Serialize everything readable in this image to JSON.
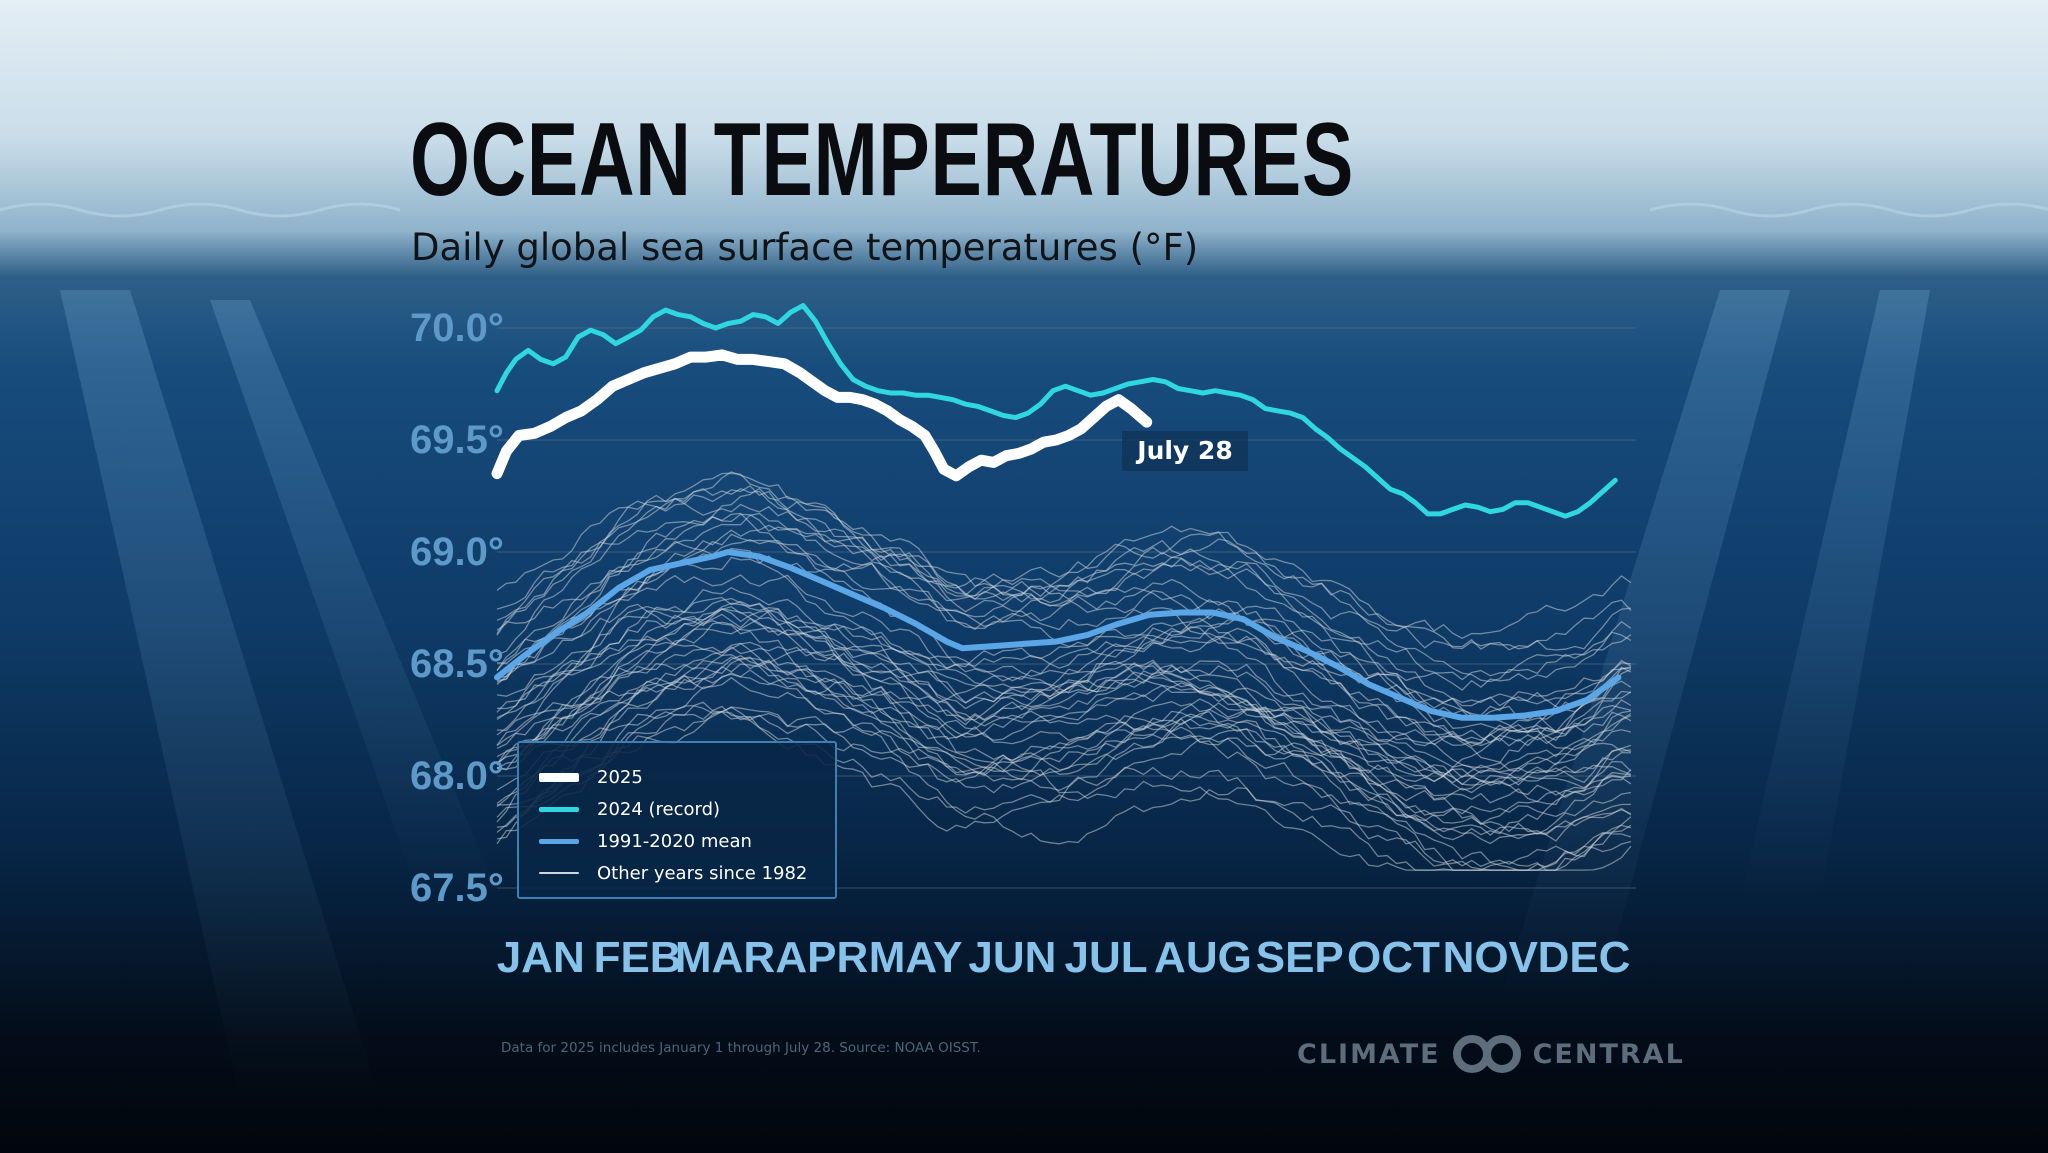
{
  "title": "OCEAN TEMPERATURES",
  "subtitle": "Daily global sea surface temperatures (°F)",
  "footnote": "Data for 2025 includes January 1 through July 28. Source: NOAA OISST.",
  "logo": {
    "left": "CLIMATE",
    "right": "CENTRAL",
    "icon": "linked-rings-icon"
  },
  "callout": "July 28",
  "legend": [
    {
      "label": "2025",
      "color": "#ffffff",
      "thickness": 9
    },
    {
      "label": "2024 (record)",
      "color": "#2fd7e0",
      "thickness": 5
    },
    {
      "label": "1991-2020 mean",
      "color": "#5aa6e6",
      "thickness": 5
    },
    {
      "label": "Other years since 1982",
      "color": "#cfd6dd",
      "thickness": 2
    }
  ],
  "colors": {
    "y2025": "#ffffff",
    "y2024": "#2fd7e0",
    "mean": "#5aa6e6",
    "other": "#d5dbe2",
    "ytick": "#5d99c9",
    "xtick": "#86c2ea",
    "grid": "#5b7892"
  },
  "chart_data": {
    "type": "line",
    "title": "OCEAN TEMPERATURES",
    "subtitle": "Daily global sea surface temperatures (°F)",
    "x_unit": "day of year",
    "ylim": [
      67.5,
      70.0
    ],
    "yticks": [
      70.0,
      69.5,
      69.0,
      68.5,
      68.0,
      67.5
    ],
    "ytick_labels": [
      "70.0°",
      "69.5°",
      "69.0°",
      "68.5°",
      "68.0°",
      "67.5°"
    ],
    "month_labels": [
      "JAN",
      "FEB",
      "MAR",
      "APR",
      "MAY",
      "JUN",
      "JUL",
      "AUG",
      "SEP",
      "OCT",
      "NOV",
      "DEC"
    ],
    "month_label_days": [
      15,
      46,
      74,
      105,
      135,
      166,
      196,
      227,
      258,
      288,
      319,
      349
    ],
    "grid": true,
    "legend_position": "bottom-left",
    "annotation": {
      "text": "July 28",
      "day": 209
    },
    "series": [
      {
        "name": "2025",
        "style": "thick-white",
        "points": [
          [
            1,
            69.35
          ],
          [
            4,
            69.45
          ],
          [
            8,
            69.52
          ],
          [
            13,
            69.53
          ],
          [
            18,
            69.56
          ],
          [
            23,
            69.6
          ],
          [
            28,
            69.63
          ],
          [
            33,
            69.68
          ],
          [
            38,
            69.74
          ],
          [
            43,
            69.77
          ],
          [
            48,
            69.8
          ],
          [
            53,
            69.82
          ],
          [
            58,
            69.84
          ],
          [
            63,
            69.87
          ],
          [
            68,
            69.87
          ],
          [
            73,
            69.88
          ],
          [
            78,
            69.86
          ],
          [
            83,
            69.86
          ],
          [
            88,
            69.85
          ],
          [
            93,
            69.84
          ],
          [
            98,
            69.8
          ],
          [
            102,
            69.76
          ],
          [
            106,
            69.72
          ],
          [
            110,
            69.69
          ],
          [
            114,
            69.69
          ],
          [
            118,
            69.68
          ],
          [
            122,
            69.66
          ],
          [
            126,
            69.63
          ],
          [
            130,
            69.59
          ],
          [
            134,
            69.56
          ],
          [
            138,
            69.52
          ],
          [
            141,
            69.45
          ],
          [
            144,
            69.37
          ],
          [
            148,
            69.34
          ],
          [
            152,
            69.38
          ],
          [
            156,
            69.41
          ],
          [
            160,
            69.4
          ],
          [
            164,
            69.43
          ],
          [
            168,
            69.44
          ],
          [
            172,
            69.46
          ],
          [
            176,
            69.49
          ],
          [
            180,
            69.5
          ],
          [
            184,
            69.52
          ],
          [
            188,
            69.55
          ],
          [
            192,
            69.6
          ],
          [
            196,
            69.65
          ],
          [
            200,
            69.68
          ],
          [
            204,
            69.64
          ],
          [
            209,
            69.58
          ]
        ]
      },
      {
        "name": "2024 (record)",
        "style": "cyan",
        "points": [
          [
            1,
            69.72
          ],
          [
            4,
            69.8
          ],
          [
            7,
            69.86
          ],
          [
            11,
            69.9
          ],
          [
            15,
            69.86
          ],
          [
            19,
            69.84
          ],
          [
            23,
            69.87
          ],
          [
            27,
            69.96
          ],
          [
            31,
            69.99
          ],
          [
            35,
            69.97
          ],
          [
            39,
            69.93
          ],
          [
            43,
            69.96
          ],
          [
            47,
            69.99
          ],
          [
            51,
            70.05
          ],
          [
            55,
            70.08
          ],
          [
            59,
            70.06
          ],
          [
            63,
            70.05
          ],
          [
            67,
            70.02
          ],
          [
            71,
            70.0
          ],
          [
            75,
            70.02
          ],
          [
            79,
            70.03
          ],
          [
            83,
            70.06
          ],
          [
            87,
            70.05
          ],
          [
            91,
            70.02
          ],
          [
            95,
            70.07
          ],
          [
            99,
            70.1
          ],
          [
            103,
            70.03
          ],
          [
            107,
            69.93
          ],
          [
            111,
            69.84
          ],
          [
            115,
            69.77
          ],
          [
            119,
            69.74
          ],
          [
            123,
            69.72
          ],
          [
            127,
            69.71
          ],
          [
            131,
            69.71
          ],
          [
            135,
            69.7
          ],
          [
            139,
            69.7
          ],
          [
            143,
            69.69
          ],
          [
            147,
            69.68
          ],
          [
            151,
            69.66
          ],
          [
            155,
            69.65
          ],
          [
            159,
            69.63
          ],
          [
            163,
            69.61
          ],
          [
            167,
            69.6
          ],
          [
            171,
            69.62
          ],
          [
            175,
            69.66
          ],
          [
            179,
            69.72
          ],
          [
            183,
            69.74
          ],
          [
            187,
            69.72
          ],
          [
            191,
            69.7
          ],
          [
            195,
            69.71
          ],
          [
            199,
            69.73
          ],
          [
            203,
            69.75
          ],
          [
            207,
            69.76
          ],
          [
            211,
            69.77
          ],
          [
            215,
            69.76
          ],
          [
            219,
            69.73
          ],
          [
            223,
            69.72
          ],
          [
            227,
            69.71
          ],
          [
            231,
            69.72
          ],
          [
            235,
            69.71
          ],
          [
            239,
            69.7
          ],
          [
            243,
            69.68
          ],
          [
            247,
            69.64
          ],
          [
            251,
            69.63
          ],
          [
            255,
            69.62
          ],
          [
            259,
            69.6
          ],
          [
            263,
            69.55
          ],
          [
            267,
            69.51
          ],
          [
            271,
            69.46
          ],
          [
            275,
            69.42
          ],
          [
            279,
            69.38
          ],
          [
            283,
            69.33
          ],
          [
            287,
            69.28
          ],
          [
            291,
            69.26
          ],
          [
            295,
            69.22
          ],
          [
            299,
            69.17
          ],
          [
            303,
            69.17
          ],
          [
            307,
            69.19
          ],
          [
            311,
            69.21
          ],
          [
            315,
            69.2
          ],
          [
            319,
            69.18
          ],
          [
            323,
            69.19
          ],
          [
            327,
            69.22
          ],
          [
            331,
            69.22
          ],
          [
            335,
            69.2
          ],
          [
            339,
            69.18
          ],
          [
            343,
            69.16
          ],
          [
            347,
            69.18
          ],
          [
            351,
            69.22
          ],
          [
            355,
            69.27
          ],
          [
            359,
            69.32
          ]
        ]
      },
      {
        "name": "1991-2020 mean",
        "style": "blue",
        "points": [
          [
            1,
            68.44
          ],
          [
            10,
            68.54
          ],
          [
            20,
            68.64
          ],
          [
            30,
            68.73
          ],
          [
            40,
            68.84
          ],
          [
            50,
            68.92
          ],
          [
            60,
            68.95
          ],
          [
            70,
            68.98
          ],
          [
            75,
            69.0
          ],
          [
            85,
            68.98
          ],
          [
            95,
            68.93
          ],
          [
            105,
            68.87
          ],
          [
            115,
            68.81
          ],
          [
            125,
            68.75
          ],
          [
            135,
            68.68
          ],
          [
            145,
            68.6
          ],
          [
            150,
            68.57
          ],
          [
            160,
            68.58
          ],
          [
            170,
            68.59
          ],
          [
            180,
            68.6
          ],
          [
            190,
            68.63
          ],
          [
            200,
            68.68
          ],
          [
            210,
            68.72
          ],
          [
            220,
            68.73
          ],
          [
            230,
            68.73
          ],
          [
            240,
            68.7
          ],
          [
            250,
            68.62
          ],
          [
            260,
            68.56
          ],
          [
            270,
            68.49
          ],
          [
            280,
            68.41
          ],
          [
            290,
            68.35
          ],
          [
            300,
            68.29
          ],
          [
            310,
            68.26
          ],
          [
            320,
            68.26
          ],
          [
            330,
            68.27
          ],
          [
            340,
            68.29
          ],
          [
            350,
            68.34
          ],
          [
            360,
            68.44
          ]
        ]
      },
      {
        "name": "Other years since 1982",
        "style": "thin-grey",
        "note": "42 individual annual traces (1982-2023)"
      }
    ]
  }
}
